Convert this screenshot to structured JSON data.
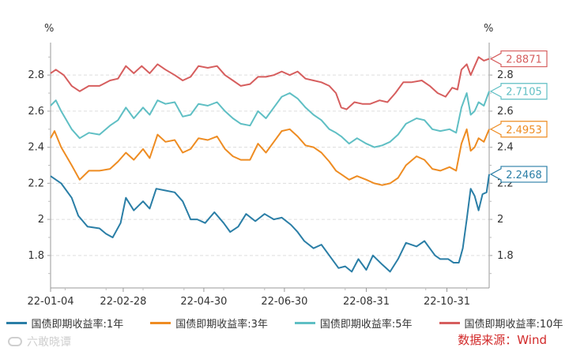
{
  "chart_data": {
    "type": "line",
    "y_unit_left": "%",
    "y_unit_right": "%",
    "ylim": [
      1.62,
      2.98
    ],
    "yticks": [
      "1.8",
      "2",
      "2.2",
      "2.4",
      "2.6",
      "2.8"
    ],
    "ytick_values": [
      1.8,
      2.0,
      2.2,
      2.4,
      2.6,
      2.8
    ],
    "x_tick_labels": [
      "22-01-04",
      "22-02-28",
      "22-04-30",
      "22-06-30",
      "22-08-31",
      "22-10-31"
    ],
    "x_tick_dates": [
      "2022-01-04",
      "2022-02-28",
      "2022-04-30",
      "2022-06-30",
      "2022-08-31",
      "2022-10-31"
    ],
    "x_range": [
      "2022-01-04",
      "2022-12-02"
    ],
    "grid": "horizontal-dashed",
    "legend_position": "bottom",
    "series": [
      {
        "name": "国债即期收益率:1年",
        "color": "#2a7ea6",
        "end_label": "2.2468",
        "points": [
          [
            "2022-01-04",
            2.24
          ],
          [
            "2022-01-12",
            2.2
          ],
          [
            "2022-01-20",
            2.12
          ],
          [
            "2022-01-25",
            2.02
          ],
          [
            "2022-02-01",
            1.96
          ],
          [
            "2022-02-10",
            1.95
          ],
          [
            "2022-02-15",
            1.92
          ],
          [
            "2022-02-20",
            1.9
          ],
          [
            "2022-02-26",
            1.98
          ],
          [
            "2022-03-02",
            2.12
          ],
          [
            "2022-03-08",
            2.05
          ],
          [
            "2022-03-15",
            2.1
          ],
          [
            "2022-03-20",
            2.06
          ],
          [
            "2022-03-25",
            2.17
          ],
          [
            "2022-04-01",
            2.16
          ],
          [
            "2022-04-08",
            2.15
          ],
          [
            "2022-04-14",
            2.1
          ],
          [
            "2022-04-20",
            2.0
          ],
          [
            "2022-04-25",
            2.0
          ],
          [
            "2022-05-01",
            1.98
          ],
          [
            "2022-05-08",
            2.04
          ],
          [
            "2022-05-15",
            1.98
          ],
          [
            "2022-05-20",
            1.93
          ],
          [
            "2022-05-26",
            1.96
          ],
          [
            "2022-06-01",
            2.03
          ],
          [
            "2022-06-08",
            1.99
          ],
          [
            "2022-06-15",
            2.03
          ],
          [
            "2022-06-22",
            2.0
          ],
          [
            "2022-06-28",
            2.01
          ],
          [
            "2022-07-05",
            1.97
          ],
          [
            "2022-07-10",
            1.93
          ],
          [
            "2022-07-15",
            1.88
          ],
          [
            "2022-07-22",
            1.84
          ],
          [
            "2022-07-28",
            1.86
          ],
          [
            "2022-08-03",
            1.8
          ],
          [
            "2022-08-10",
            1.73
          ],
          [
            "2022-08-15",
            1.74
          ],
          [
            "2022-08-20",
            1.71
          ],
          [
            "2022-08-25",
            1.78
          ],
          [
            "2022-08-31",
            1.72
          ],
          [
            "2022-09-05",
            1.8
          ],
          [
            "2022-09-12",
            1.75
          ],
          [
            "2022-09-18",
            1.71
          ],
          [
            "2022-09-24",
            1.78
          ],
          [
            "2022-09-30",
            1.87
          ],
          [
            "2022-10-08",
            1.85
          ],
          [
            "2022-10-14",
            1.88
          ],
          [
            "2022-10-18",
            1.84
          ],
          [
            "2022-10-22",
            1.8
          ],
          [
            "2022-10-26",
            1.78
          ],
          [
            "2022-11-01",
            1.78
          ],
          [
            "2022-11-05",
            1.76
          ],
          [
            "2022-11-09",
            1.76
          ],
          [
            "2022-11-12",
            1.84
          ],
          [
            "2022-11-15",
            2.0
          ],
          [
            "2022-11-18",
            2.17
          ],
          [
            "2022-11-21",
            2.13
          ],
          [
            "2022-11-24",
            2.05
          ],
          [
            "2022-11-27",
            2.14
          ],
          [
            "2022-11-30",
            2.15
          ],
          [
            "2022-12-02",
            2.25
          ]
        ]
      },
      {
        "name": "国债即期收益率:3年",
        "color": "#ee8c22",
        "end_label": "2.4953",
        "points": [
          [
            "2022-01-04",
            2.45
          ],
          [
            "2022-01-07",
            2.49
          ],
          [
            "2022-01-12",
            2.4
          ],
          [
            "2022-01-20",
            2.3
          ],
          [
            "2022-01-26",
            2.22
          ],
          [
            "2022-02-02",
            2.27
          ],
          [
            "2022-02-10",
            2.27
          ],
          [
            "2022-02-18",
            2.28
          ],
          [
            "2022-02-24",
            2.32
          ],
          [
            "2022-03-02",
            2.37
          ],
          [
            "2022-03-08",
            2.33
          ],
          [
            "2022-03-15",
            2.39
          ],
          [
            "2022-03-20",
            2.34
          ],
          [
            "2022-03-26",
            2.47
          ],
          [
            "2022-04-01",
            2.43
          ],
          [
            "2022-04-08",
            2.44
          ],
          [
            "2022-04-14",
            2.37
          ],
          [
            "2022-04-20",
            2.39
          ],
          [
            "2022-04-26",
            2.45
          ],
          [
            "2022-05-03",
            2.44
          ],
          [
            "2022-05-10",
            2.46
          ],
          [
            "2022-05-16",
            2.39
          ],
          [
            "2022-05-22",
            2.35
          ],
          [
            "2022-05-28",
            2.33
          ],
          [
            "2022-06-04",
            2.33
          ],
          [
            "2022-06-10",
            2.42
          ],
          [
            "2022-06-16",
            2.37
          ],
          [
            "2022-06-22",
            2.43
          ],
          [
            "2022-06-28",
            2.49
          ],
          [
            "2022-07-04",
            2.5
          ],
          [
            "2022-07-10",
            2.46
          ],
          [
            "2022-07-16",
            2.41
          ],
          [
            "2022-07-22",
            2.4
          ],
          [
            "2022-07-28",
            2.37
          ],
          [
            "2022-08-03",
            2.32
          ],
          [
            "2022-08-08",
            2.27
          ],
          [
            "2022-08-12",
            2.25
          ],
          [
            "2022-08-18",
            2.22
          ],
          [
            "2022-08-24",
            2.24
          ],
          [
            "2022-08-31",
            2.22
          ],
          [
            "2022-09-06",
            2.2
          ],
          [
            "2022-09-12",
            2.19
          ],
          [
            "2022-09-18",
            2.2
          ],
          [
            "2022-09-24",
            2.23
          ],
          [
            "2022-09-30",
            2.3
          ],
          [
            "2022-10-08",
            2.35
          ],
          [
            "2022-10-14",
            2.33
          ],
          [
            "2022-10-20",
            2.28
          ],
          [
            "2022-10-26",
            2.27
          ],
          [
            "2022-11-02",
            2.29
          ],
          [
            "2022-11-07",
            2.27
          ],
          [
            "2022-11-11",
            2.42
          ],
          [
            "2022-11-15",
            2.5
          ],
          [
            "2022-11-18",
            2.38
          ],
          [
            "2022-11-21",
            2.4
          ],
          [
            "2022-11-24",
            2.45
          ],
          [
            "2022-11-28",
            2.43
          ],
          [
            "2022-12-02",
            2.5
          ]
        ]
      },
      {
        "name": "国债即期收益率:5年",
        "color": "#5fbfc4",
        "end_label": "2.7105",
        "points": [
          [
            "2022-01-04",
            2.63
          ],
          [
            "2022-01-08",
            2.66
          ],
          [
            "2022-01-12",
            2.6
          ],
          [
            "2022-01-20",
            2.5
          ],
          [
            "2022-01-26",
            2.45
          ],
          [
            "2022-02-02",
            2.48
          ],
          [
            "2022-02-10",
            2.47
          ],
          [
            "2022-02-18",
            2.52
          ],
          [
            "2022-02-24",
            2.55
          ],
          [
            "2022-03-02",
            2.62
          ],
          [
            "2022-03-08",
            2.56
          ],
          [
            "2022-03-15",
            2.62
          ],
          [
            "2022-03-20",
            2.58
          ],
          [
            "2022-03-26",
            2.66
          ],
          [
            "2022-04-01",
            2.64
          ],
          [
            "2022-04-08",
            2.65
          ],
          [
            "2022-04-14",
            2.57
          ],
          [
            "2022-04-20",
            2.58
          ],
          [
            "2022-04-26",
            2.64
          ],
          [
            "2022-05-03",
            2.63
          ],
          [
            "2022-05-10",
            2.65
          ],
          [
            "2022-05-16",
            2.6
          ],
          [
            "2022-05-22",
            2.56
          ],
          [
            "2022-05-28",
            2.53
          ],
          [
            "2022-06-04",
            2.52
          ],
          [
            "2022-06-10",
            2.6
          ],
          [
            "2022-06-16",
            2.56
          ],
          [
            "2022-06-22",
            2.62
          ],
          [
            "2022-06-28",
            2.68
          ],
          [
            "2022-07-04",
            2.7
          ],
          [
            "2022-07-10",
            2.67
          ],
          [
            "2022-07-16",
            2.62
          ],
          [
            "2022-07-22",
            2.58
          ],
          [
            "2022-07-28",
            2.55
          ],
          [
            "2022-08-03",
            2.5
          ],
          [
            "2022-08-08",
            2.48
          ],
          [
            "2022-08-12",
            2.46
          ],
          [
            "2022-08-18",
            2.42
          ],
          [
            "2022-08-24",
            2.45
          ],
          [
            "2022-08-31",
            2.42
          ],
          [
            "2022-09-06",
            2.4
          ],
          [
            "2022-09-12",
            2.41
          ],
          [
            "2022-09-18",
            2.43
          ],
          [
            "2022-09-24",
            2.47
          ],
          [
            "2022-09-30",
            2.53
          ],
          [
            "2022-10-08",
            2.56
          ],
          [
            "2022-10-14",
            2.55
          ],
          [
            "2022-10-20",
            2.5
          ],
          [
            "2022-10-26",
            2.49
          ],
          [
            "2022-11-02",
            2.5
          ],
          [
            "2022-11-07",
            2.48
          ],
          [
            "2022-11-11",
            2.62
          ],
          [
            "2022-11-15",
            2.7
          ],
          [
            "2022-11-18",
            2.58
          ],
          [
            "2022-11-21",
            2.6
          ],
          [
            "2022-11-24",
            2.65
          ],
          [
            "2022-11-28",
            2.63
          ],
          [
            "2022-12-02",
            2.71
          ]
        ]
      },
      {
        "name": "国债即期收益率:10年",
        "color": "#d65e5e",
        "end_label": "2.8871",
        "points": [
          [
            "2022-01-04",
            2.81
          ],
          [
            "2022-01-08",
            2.83
          ],
          [
            "2022-01-14",
            2.8
          ],
          [
            "2022-01-20",
            2.74
          ],
          [
            "2022-01-26",
            2.71
          ],
          [
            "2022-02-02",
            2.74
          ],
          [
            "2022-02-10",
            2.74
          ],
          [
            "2022-02-18",
            2.77
          ],
          [
            "2022-02-24",
            2.78
          ],
          [
            "2022-03-02",
            2.85
          ],
          [
            "2022-03-08",
            2.81
          ],
          [
            "2022-03-14",
            2.85
          ],
          [
            "2022-03-20",
            2.81
          ],
          [
            "2022-03-26",
            2.86
          ],
          [
            "2022-04-01",
            2.83
          ],
          [
            "2022-04-08",
            2.8
          ],
          [
            "2022-04-14",
            2.77
          ],
          [
            "2022-04-20",
            2.79
          ],
          [
            "2022-04-26",
            2.85
          ],
          [
            "2022-05-03",
            2.84
          ],
          [
            "2022-05-10",
            2.85
          ],
          [
            "2022-05-16",
            2.8
          ],
          [
            "2022-05-22",
            2.77
          ],
          [
            "2022-05-28",
            2.74
          ],
          [
            "2022-06-04",
            2.75
          ],
          [
            "2022-06-10",
            2.79
          ],
          [
            "2022-06-16",
            2.79
          ],
          [
            "2022-06-22",
            2.8
          ],
          [
            "2022-06-28",
            2.82
          ],
          [
            "2022-07-04",
            2.8
          ],
          [
            "2022-07-10",
            2.82
          ],
          [
            "2022-07-16",
            2.78
          ],
          [
            "2022-07-22",
            2.77
          ],
          [
            "2022-07-28",
            2.76
          ],
          [
            "2022-08-03",
            2.74
          ],
          [
            "2022-08-08",
            2.7
          ],
          [
            "2022-08-12",
            2.62
          ],
          [
            "2022-08-16",
            2.61
          ],
          [
            "2022-08-22",
            2.65
          ],
          [
            "2022-08-28",
            2.64
          ],
          [
            "2022-09-03",
            2.64
          ],
          [
            "2022-09-10",
            2.66
          ],
          [
            "2022-09-16",
            2.65
          ],
          [
            "2022-09-22",
            2.7
          ],
          [
            "2022-09-28",
            2.76
          ],
          [
            "2022-10-04",
            2.76
          ],
          [
            "2022-10-12",
            2.77
          ],
          [
            "2022-10-18",
            2.74
          ],
          [
            "2022-10-24",
            2.7
          ],
          [
            "2022-10-30",
            2.68
          ],
          [
            "2022-11-04",
            2.73
          ],
          [
            "2022-11-08",
            2.72
          ],
          [
            "2022-11-11",
            2.83
          ],
          [
            "2022-11-15",
            2.86
          ],
          [
            "2022-11-18",
            2.8
          ],
          [
            "2022-11-21",
            2.85
          ],
          [
            "2022-11-24",
            2.9
          ],
          [
            "2022-11-28",
            2.88
          ],
          [
            "2022-12-02",
            2.89
          ]
        ]
      }
    ]
  },
  "source_text": "数据来源：Wind",
  "watermark_text": "六敢晓谭"
}
